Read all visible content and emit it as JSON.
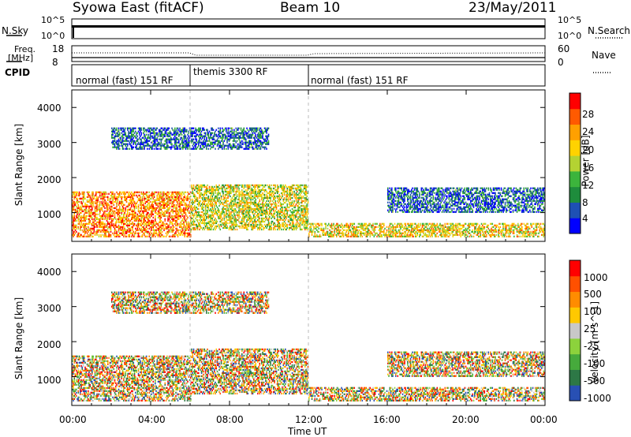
{
  "header": {
    "station": "Syowa East (fitACF)",
    "beam": "Beam 10",
    "date": "23/May/2011"
  },
  "top_panels": {
    "nsky_label": "N.Sky",
    "nsky_ticks": [
      "10^5",
      "10^0"
    ],
    "nsearch_label": "N.Search",
    "freq_label_line1": "Freq.",
    "freq_label_line2": "[MHz]",
    "freq_ticks": [
      "18",
      "8"
    ],
    "nave_ticks": [
      "60",
      "0"
    ],
    "nave_label": "Nave",
    "cpid_label": "CPID",
    "cpid_segments": [
      {
        "label": "normal (fast) 151 RF",
        "start_hour": 0,
        "end_hour": 6
      },
      {
        "label": "themis 3300 RF",
        "start_hour": 6,
        "end_hour": 12
      },
      {
        "label": "normal (fast) 151 RF",
        "start_hour": 12,
        "end_hour": 24
      }
    ]
  },
  "chart_data": [
    {
      "type": "heatmap",
      "title": "",
      "xlabel": "",
      "ylabel": "Slant Range [km]",
      "xlim": [
        0,
        24
      ],
      "ylim": [
        180,
        4500
      ],
      "y_ticks": [
        "1000",
        "2000",
        "3000",
        "4000"
      ],
      "colorbar_label": "Power [dB]",
      "colorbar_ticks": [
        "28",
        "24",
        "20",
        "16",
        "12",
        "8",
        "4"
      ],
      "colorbar_colors": [
        "#0000ff",
        "#1e50b4",
        "#1e8c3c",
        "#3cb43c",
        "#b4d232",
        "#ffd200",
        "#ffa000",
        "#ff5a00",
        "#ff0000"
      ],
      "echo_regions": [
        {
          "x": [
            0,
            6
          ],
          "y": [
            300,
            1600
          ],
          "level": 0.75
        },
        {
          "x": [
            6,
            12
          ],
          "y": [
            500,
            1800
          ],
          "level": 0.55
        },
        {
          "x": [
            2,
            10
          ],
          "y": [
            2800,
            3400
          ],
          "level": 0.2
        },
        {
          "x": [
            12,
            24
          ],
          "y": [
            300,
            700
          ],
          "level": 0.6
        },
        {
          "x": [
            16,
            24
          ],
          "y": [
            1000,
            1700
          ],
          "level": 0.2
        }
      ]
    },
    {
      "type": "heatmap",
      "title": "",
      "xlabel": "Time UT",
      "ylabel": "Slant Range [km]",
      "xlim": [
        0,
        24
      ],
      "ylim": [
        180,
        4500
      ],
      "x_ticks": [
        "00:00",
        "04:00",
        "08:00",
        "12:00",
        "16:00",
        "20:00",
        "00:00"
      ],
      "y_ticks": [
        "1000",
        "2000",
        "3000",
        "4000"
      ],
      "colorbar_label": "Velocity [m s^-1]",
      "colorbar_ticks": [
        "1000",
        "500",
        "100",
        "25",
        "-25",
        "-100",
        "-500",
        "-1000"
      ],
      "colorbar_colors": [
        "#2850b4",
        "#2d7846",
        "#46aa3c",
        "#8cd23c",
        "#c8c8c8",
        "#ffc800",
        "#ff8c00",
        "#ff5000",
        "#ff0000"
      ]
    }
  ]
}
